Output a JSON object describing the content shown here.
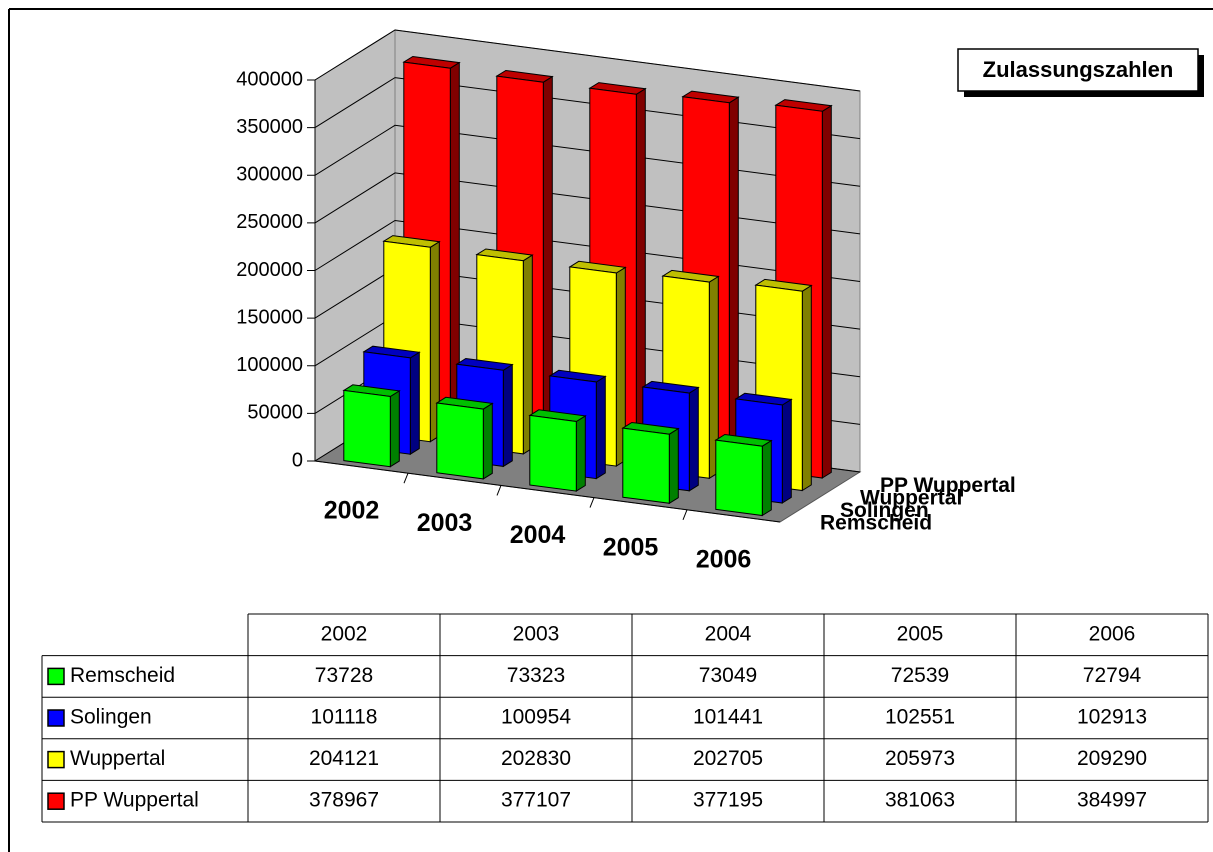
{
  "chart_data": {
    "type": "bar",
    "title": "Zulassungszahlen",
    "categories": [
      "2002",
      "2003",
      "2004",
      "2005",
      "2006"
    ],
    "series": [
      {
        "name": "Remscheid",
        "color": "#00ff00",
        "values": [
          73728,
          73323,
          73049,
          72539,
          72794
        ]
      },
      {
        "name": "Solingen",
        "color": "#0000ff",
        "values": [
          101118,
          100954,
          101441,
          102551,
          102913
        ]
      },
      {
        "name": "Wuppertal",
        "color": "#ffff00",
        "values": [
          204121,
          202830,
          202705,
          205973,
          209290
        ]
      },
      {
        "name": "PP Wuppertal",
        "color": "#ff0000",
        "values": [
          378967,
          377107,
          377195,
          381063,
          384997
        ]
      }
    ],
    "ylim": [
      0,
      400000
    ],
    "yticks": [
      0,
      50000,
      100000,
      150000,
      200000,
      250000,
      300000,
      350000,
      400000
    ],
    "grid": true
  }
}
